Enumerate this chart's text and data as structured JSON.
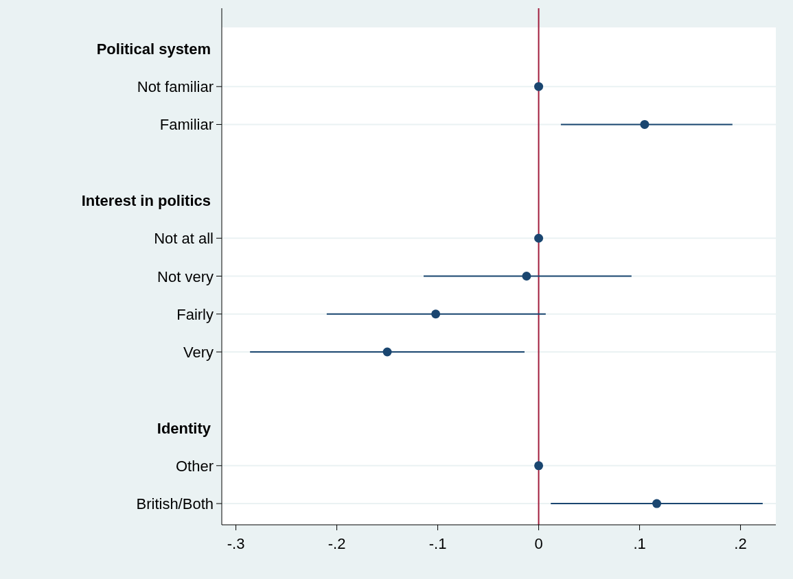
{
  "chart_data": {
    "type": "scatter",
    "orientation": "horizontal",
    "categories": [
      "Political system",
      "Not familiar",
      "Familiar",
      null,
      "Interest in politics",
      "Not at all",
      "Not very",
      "Fairly",
      "Very",
      null,
      "Identity",
      "Other",
      "British/Both"
    ],
    "series": [
      {
        "color": "#1a4670",
        "values": [
          null,
          0,
          0.105,
          null,
          null,
          0,
          -0.012,
          -0.102,
          -0.15,
          null,
          null,
          0,
          0.117
        ],
        "errors": [
          null,
          null,
          [
            0.022,
            0.192
          ],
          null,
          null,
          null,
          [
            -0.114,
            0.092
          ],
          [
            -0.21,
            0.007
          ],
          [
            -0.286,
            -0.014
          ],
          null,
          null,
          null,
          [
            0.012,
            0.222
          ]
        ]
      }
    ],
    "xlim": [
      -0.314,
      0.235
    ],
    "xticks": [
      {
        "value": -0.3,
        "label": "-.3"
      },
      {
        "value": -0.2,
        "label": "-.2"
      },
      {
        "value": -0.1,
        "label": "-.1"
      },
      0,
      {
        "value": 0.1,
        "label": ".1"
      },
      {
        "value": 0.2,
        "label": ".2"
      }
    ],
    "ref_lines": [
      {
        "axis": "x",
        "value": 0,
        "color": "#a01c3c"
      }
    ],
    "grid": "y",
    "marker": "circle"
  }
}
